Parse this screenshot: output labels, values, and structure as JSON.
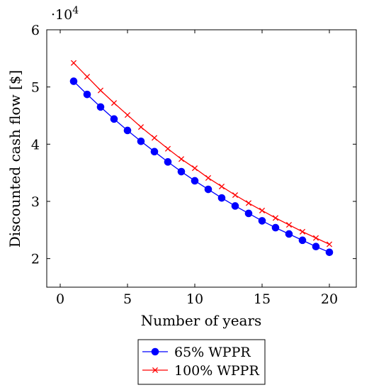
{
  "chart_data": {
    "type": "line",
    "xlabel": "Number of years",
    "ylabel": "Discounted cash flow [$]",
    "y_multiplier": "·10",
    "y_multiplier_exp": "4",
    "xlim": [
      -1,
      22
    ],
    "ylim": [
      1.5,
      6
    ],
    "x_ticks": [
      0,
      5,
      10,
      15,
      20
    ],
    "y_ticks": [
      2,
      3,
      4,
      5,
      6
    ],
    "grid": false,
    "legend_position": "bottom-center",
    "x": [
      1,
      2,
      3,
      4,
      5,
      6,
      7,
      8,
      9,
      10,
      11,
      12,
      13,
      14,
      15,
      16,
      17,
      18,
      19,
      20
    ],
    "series": [
      {
        "name": "65% WPPR",
        "color": "#0000ff",
        "marker": "circle",
        "values": [
          5.1,
          4.87,
          4.65,
          4.44,
          4.24,
          4.05,
          3.87,
          3.69,
          3.52,
          3.36,
          3.21,
          3.06,
          2.92,
          2.79,
          2.66,
          2.54,
          2.43,
          2.32,
          2.21,
          2.11
        ]
      },
      {
        "name": "100% WPPR",
        "color": "#ff0000",
        "marker": "x",
        "values": [
          5.42,
          5.18,
          4.94,
          4.72,
          4.51,
          4.3,
          4.11,
          3.92,
          3.74,
          3.58,
          3.41,
          3.26,
          3.11,
          2.97,
          2.84,
          2.71,
          2.59,
          2.47,
          2.36,
          2.25
        ]
      }
    ]
  }
}
